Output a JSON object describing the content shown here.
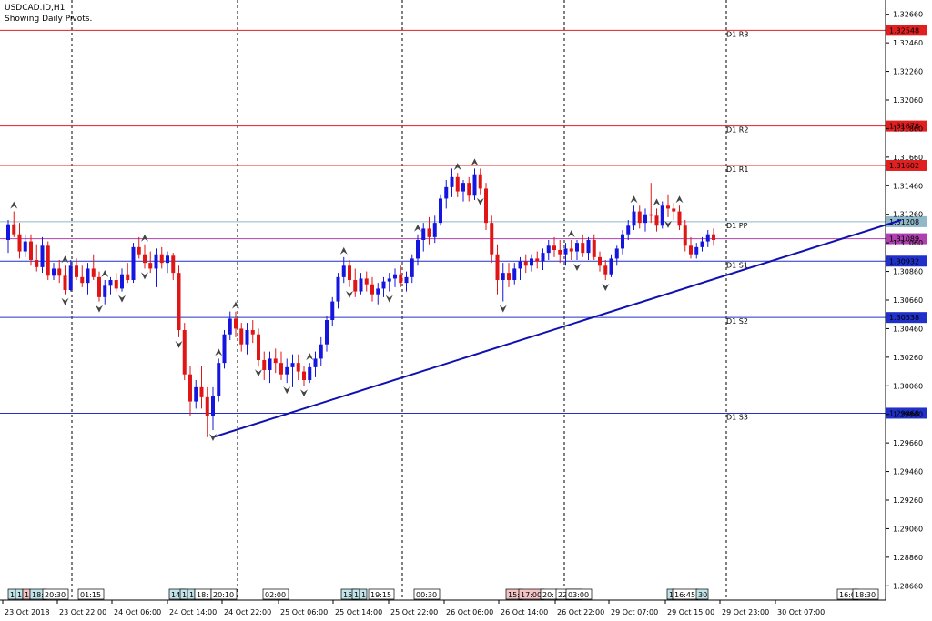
{
  "header": {
    "symbol_line": "USDCAD.ID,H1",
    "subtitle": "Showing Daily Pivots."
  },
  "colors": {
    "bull": "#1515e0",
    "bear": "#e01515",
    "resistance": "#e02020",
    "support": "#2030c8",
    "pivot": "#90b8c8",
    "current": "#b040b0",
    "trendline": "#1010b0"
  },
  "chart_data": {
    "type": "candlestick",
    "y_ticks": [
      "1.32660",
      "1.32460",
      "1.32260",
      "1.32060",
      "1.31860",
      "1.31660",
      "1.31460",
      "1.31260",
      "1.31060",
      "1.30860",
      "1.30660",
      "1.30460",
      "1.30260",
      "1.30060",
      "1.29860",
      "1.29660",
      "1.29460",
      "1.29260",
      "1.29060",
      "1.28860",
      "1.28660"
    ],
    "ylim": [
      1.2856,
      1.3276
    ],
    "x_labels": [
      "23 Oct 2018",
      "23 Oct 22:00",
      "24 Oct 06:00",
      "24 Oct 14:00",
      "24 Oct 22:00",
      "25 Oct 06:00",
      "25 Oct 14:00",
      "25 Oct 22:00",
      "26 Oct 06:00",
      "26 Oct 14:00",
      "26 Oct 22:00",
      "29 Oct 07:00",
      "29 Oct 15:00",
      "29 Oct 23:00",
      "30 Oct 07:00"
    ],
    "pivot_levels": [
      {
        "label": "D1 R3",
        "value": 1.32548,
        "price_tag": "1.32548",
        "kind": "resistance"
      },
      {
        "label": "D1 R2",
        "value": 1.31878,
        "price_tag": "1.31878",
        "kind": "resistance"
      },
      {
        "label": "D1 R1",
        "value": 1.31602,
        "price_tag": "1.31602",
        "kind": "resistance"
      },
      {
        "label": "D1 PP",
        "value": 1.31208,
        "price_tag": "1.31208",
        "kind": "pivot"
      },
      {
        "label": "D1 S1",
        "value": 1.30932,
        "price_tag": "1.30932",
        "kind": "support"
      },
      {
        "label": "D1 S2",
        "value": 1.30538,
        "price_tag": "1.30538",
        "kind": "support"
      },
      {
        "label": "D1 S3",
        "value": 1.29868,
        "price_tag": "1.29868",
        "kind": "support"
      }
    ],
    "current_price": {
      "value": 1.31089,
      "price_tag": "1.31089"
    },
    "time_markers": [
      {
        "text": "1",
        "shade": "blue"
      },
      {
        "text": "1",
        "shade": "blue"
      },
      {
        "text": "1",
        "shade": "red"
      },
      {
        "text": "18:",
        "shade": "blue"
      },
      {
        "text": "20:30",
        "shade": "none"
      },
      {
        "text": "01:15",
        "shade": "none"
      },
      {
        "text": "14:",
        "shade": "blue"
      },
      {
        "text": "1",
        "shade": "blue"
      },
      {
        "text": "1",
        "shade": "blue"
      },
      {
        "text": "18:",
        "shade": "none"
      },
      {
        "text": "20:10",
        "shade": "none"
      },
      {
        "text": "02:00",
        "shade": "none"
      },
      {
        "text": "15:",
        "shade": "blue"
      },
      {
        "text": "1",
        "shade": "blue"
      },
      {
        "text": "1",
        "shade": "blue"
      },
      {
        "text": "19:15",
        "shade": "none"
      },
      {
        "text": "00:30",
        "shade": "none"
      },
      {
        "text": "15:",
        "shade": "red"
      },
      {
        "text": "17:00",
        "shade": "red"
      },
      {
        "text": "20:",
        "shade": "none"
      },
      {
        "text": "22:30",
        "shade": "none"
      },
      {
        "text": "03:00",
        "shade": "none"
      },
      {
        "text": "1",
        "shade": "blue"
      },
      {
        "text": "16:45",
        "shade": "none"
      },
      {
        "text": "30",
        "shade": "blue"
      },
      {
        "text": "16:0",
        "shade": "none"
      },
      {
        "text": "18:30",
        "shade": "none"
      }
    ],
    "trendline": {
      "from": {
        "index": 36,
        "price": 1.297
      },
      "to": {
        "index": 157,
        "price": 1.3122
      }
    },
    "candles": [
      [
        1.3108,
        1.3122,
        1.3099,
        1.3119
      ],
      [
        1.3119,
        1.3128,
        1.311,
        1.3112
      ],
      [
        1.3112,
        1.312,
        1.3095,
        1.31
      ],
      [
        1.31,
        1.3112,
        1.3096,
        1.3107
      ],
      [
        1.3107,
        1.3112,
        1.309,
        1.3094
      ],
      [
        1.3094,
        1.3105,
        1.3086,
        1.3089
      ],
      [
        1.3089,
        1.311,
        1.3085,
        1.3104
      ],
      [
        1.3104,
        1.3107,
        1.308,
        1.3083
      ],
      [
        1.3083,
        1.3092,
        1.308,
        1.3088
      ],
      [
        1.3088,
        1.3094,
        1.3078,
        1.3083
      ],
      [
        1.3083,
        1.309,
        1.307,
        1.3073
      ],
      [
        1.3073,
        1.3094,
        1.3072,
        1.309
      ],
      [
        1.309,
        1.3095,
        1.308,
        1.3082
      ],
      [
        1.3082,
        1.309,
        1.3075,
        1.3078
      ],
      [
        1.3078,
        1.3092,
        1.307,
        1.3088
      ],
      [
        1.3088,
        1.3098,
        1.308,
        1.3082
      ],
      [
        1.3082,
        1.3086,
        1.3065,
        1.3068
      ],
      [
        1.3068,
        1.308,
        1.3063,
        1.3076
      ],
      [
        1.3076,
        1.3082,
        1.307,
        1.308
      ],
      [
        1.308,
        1.3085,
        1.3072,
        1.3074
      ],
      [
        1.3074,
        1.3088,
        1.3072,
        1.3084
      ],
      [
        1.3084,
        1.3092,
        1.3078,
        1.308
      ],
      [
        1.308,
        1.3106,
        1.3078,
        1.3103
      ],
      [
        1.3103,
        1.311,
        1.3095,
        1.3098
      ],
      [
        1.3098,
        1.3105,
        1.3088,
        1.3092
      ],
      [
        1.3092,
        1.31,
        1.3085,
        1.3088
      ],
      [
        1.3088,
        1.3102,
        1.3075,
        1.3098
      ],
      [
        1.3098,
        1.3103,
        1.3088,
        1.3092
      ],
      [
        1.3092,
        1.31,
        1.3085,
        1.3097
      ],
      [
        1.3097,
        1.3099,
        1.308,
        1.3085
      ],
      [
        1.3085,
        1.309,
        1.304,
        1.3045
      ],
      [
        1.3045,
        1.305,
        1.301,
        1.3014
      ],
      [
        1.3014,
        1.302,
        1.2985,
        1.2995
      ],
      [
        1.2995,
        1.301,
        1.299,
        1.3005
      ],
      [
        1.3005,
        1.302,
        1.299,
        1.2998
      ],
      [
        1.2998,
        1.3005,
        1.297,
        1.2985
      ],
      [
        1.2985,
        1.3005,
        1.2975,
        1.2999
      ],
      [
        1.2999,
        1.3025,
        1.2995,
        1.3022
      ],
      [
        1.3022,
        1.3045,
        1.3018,
        1.3042
      ],
      [
        1.3042,
        1.3058,
        1.3038,
        1.3053
      ],
      [
        1.3053,
        1.3058,
        1.304,
        1.3046
      ],
      [
        1.3046,
        1.305,
        1.303,
        1.3035
      ],
      [
        1.3035,
        1.305,
        1.3028,
        1.3045
      ],
      [
        1.3045,
        1.3052,
        1.3036,
        1.3042
      ],
      [
        1.3042,
        1.3046,
        1.302,
        1.3024
      ],
      [
        1.3024,
        1.303,
        1.301,
        1.3017
      ],
      [
        1.3017,
        1.303,
        1.3008,
        1.3025
      ],
      [
        1.3025,
        1.3032,
        1.3015,
        1.3022
      ],
      [
        1.3022,
        1.303,
        1.301,
        1.3014
      ],
      [
        1.3014,
        1.3025,
        1.3008,
        1.3019
      ],
      [
        1.3019,
        1.3028,
        1.3005,
        1.3022
      ],
      [
        1.3022,
        1.3028,
        1.301,
        1.3016
      ],
      [
        1.3016,
        1.302,
        1.3006,
        1.301
      ],
      [
        1.301,
        1.3022,
        1.3008,
        1.3019
      ],
      [
        1.3019,
        1.303,
        1.3012,
        1.3025
      ],
      [
        1.3025,
        1.304,
        1.302,
        1.3035
      ],
      [
        1.3035,
        1.3055,
        1.303,
        1.3052
      ],
      [
        1.3052,
        1.3068,
        1.3048,
        1.3065
      ],
      [
        1.3065,
        1.3085,
        1.306,
        1.3082
      ],
      [
        1.3082,
        1.3096,
        1.3078,
        1.309
      ],
      [
        1.309,
        1.3094,
        1.3075,
        1.308
      ],
      [
        1.308,
        1.3088,
        1.3068,
        1.3072
      ],
      [
        1.3072,
        1.3085,
        1.307,
        1.3081
      ],
      [
        1.3081,
        1.3086,
        1.3072,
        1.3077
      ],
      [
        1.3077,
        1.3082,
        1.3065,
        1.307
      ],
      [
        1.307,
        1.3078,
        1.3063,
        1.3074
      ],
      [
        1.3074,
        1.3082,
        1.3068,
        1.3079
      ],
      [
        1.3079,
        1.3085,
        1.3072,
        1.3081
      ],
      [
        1.3081,
        1.3088,
        1.3075,
        1.3084
      ],
      [
        1.3084,
        1.309,
        1.3075,
        1.3078
      ],
      [
        1.3078,
        1.3086,
        1.3072,
        1.3082
      ],
      [
        1.3082,
        1.3098,
        1.3078,
        1.3095
      ],
      [
        1.3095,
        1.3112,
        1.309,
        1.3108
      ],
      [
        1.3108,
        1.312,
        1.31,
        1.3116
      ],
      [
        1.3116,
        1.3124,
        1.3105,
        1.311
      ],
      [
        1.311,
        1.3125,
        1.3106,
        1.312
      ],
      [
        1.312,
        1.314,
        1.3118,
        1.3137
      ],
      [
        1.3137,
        1.315,
        1.313,
        1.3145
      ],
      [
        1.3145,
        1.3158,
        1.3138,
        1.3152
      ],
      [
        1.3152,
        1.3155,
        1.3138,
        1.3142
      ],
      [
        1.3142,
        1.315,
        1.3135,
        1.3148
      ],
      [
        1.3148,
        1.3152,
        1.3135,
        1.3139
      ],
      [
        1.3139,
        1.3158,
        1.3136,
        1.3154
      ],
      [
        1.3154,
        1.3158,
        1.314,
        1.3144
      ],
      [
        1.3144,
        1.3148,
        1.3115,
        1.312
      ],
      [
        1.312,
        1.3125,
        1.3092,
        1.3098
      ],
      [
        1.3098,
        1.3105,
        1.307,
        1.308
      ],
      [
        1.308,
        1.3092,
        1.3065,
        1.3085
      ],
      [
        1.3085,
        1.3092,
        1.3075,
        1.308
      ],
      [
        1.308,
        1.3092,
        1.3077,
        1.3088
      ],
      [
        1.3088,
        1.3096,
        1.308,
        1.3093
      ],
      [
        1.3093,
        1.3098,
        1.3085,
        1.309
      ],
      [
        1.309,
        1.3098,
        1.3086,
        1.3095
      ],
      [
        1.3095,
        1.31,
        1.3088,
        1.3093
      ],
      [
        1.3093,
        1.3102,
        1.3087,
        1.3099
      ],
      [
        1.3099,
        1.3108,
        1.3094,
        1.3104
      ],
      [
        1.3104,
        1.311,
        1.3096,
        1.3101
      ],
      [
        1.3101,
        1.3108,
        1.3092,
        1.3098
      ],
      [
        1.3098,
        1.3106,
        1.309,
        1.3102
      ],
      [
        1.3102,
        1.3108,
        1.3094,
        1.31
      ],
      [
        1.31,
        1.3108,
        1.3094,
        1.3106
      ],
      [
        1.3106,
        1.3112,
        1.3096,
        1.3099
      ],
      [
        1.3099,
        1.311,
        1.3094,
        1.3108
      ],
      [
        1.3108,
        1.3112,
        1.3094,
        1.3096
      ],
      [
        1.3096,
        1.31,
        1.3086,
        1.309
      ],
      [
        1.309,
        1.3094,
        1.308,
        1.3084
      ],
      [
        1.3084,
        1.3098,
        1.3082,
        1.3095
      ],
      [
        1.3095,
        1.3104,
        1.309,
        1.3102
      ],
      [
        1.3102,
        1.3115,
        1.3098,
        1.3112
      ],
      [
        1.3112,
        1.3122,
        1.3108,
        1.3118
      ],
      [
        1.3118,
        1.3132,
        1.3115,
        1.3128
      ],
      [
        1.3128,
        1.3132,
        1.3116,
        1.312
      ],
      [
        1.312,
        1.313,
        1.3114,
        1.3126
      ],
      [
        1.3126,
        1.3148,
        1.312,
        1.3125
      ],
      [
        1.3125,
        1.313,
        1.3114,
        1.3118
      ],
      [
        1.3118,
        1.3135,
        1.3116,
        1.3132
      ],
      [
        1.3132,
        1.314,
        1.3124,
        1.313
      ],
      [
        1.313,
        1.3134,
        1.3122,
        1.3128
      ],
      [
        1.3128,
        1.3132,
        1.3115,
        1.3118
      ],
      [
        1.3118,
        1.3122,
        1.31,
        1.3104
      ],
      [
        1.3104,
        1.311,
        1.3095,
        1.3098
      ],
      [
        1.3098,
        1.3106,
        1.3095,
        1.3103
      ],
      [
        1.3103,
        1.311,
        1.31,
        1.3107
      ],
      [
        1.3107,
        1.3115,
        1.3103,
        1.3112
      ],
      [
        1.3112,
        1.3116,
        1.3104,
        1.3108
      ]
    ]
  },
  "arrows": {
    "up": [
      1,
      10,
      17,
      24,
      37,
      40,
      53,
      59,
      72,
      79,
      82,
      99,
      110,
      114,
      118
    ],
    "down": [
      10,
      16,
      20,
      24,
      30,
      36,
      44,
      49,
      52,
      60,
      67,
      83,
      87,
      100,
      105,
      116
    ]
  }
}
